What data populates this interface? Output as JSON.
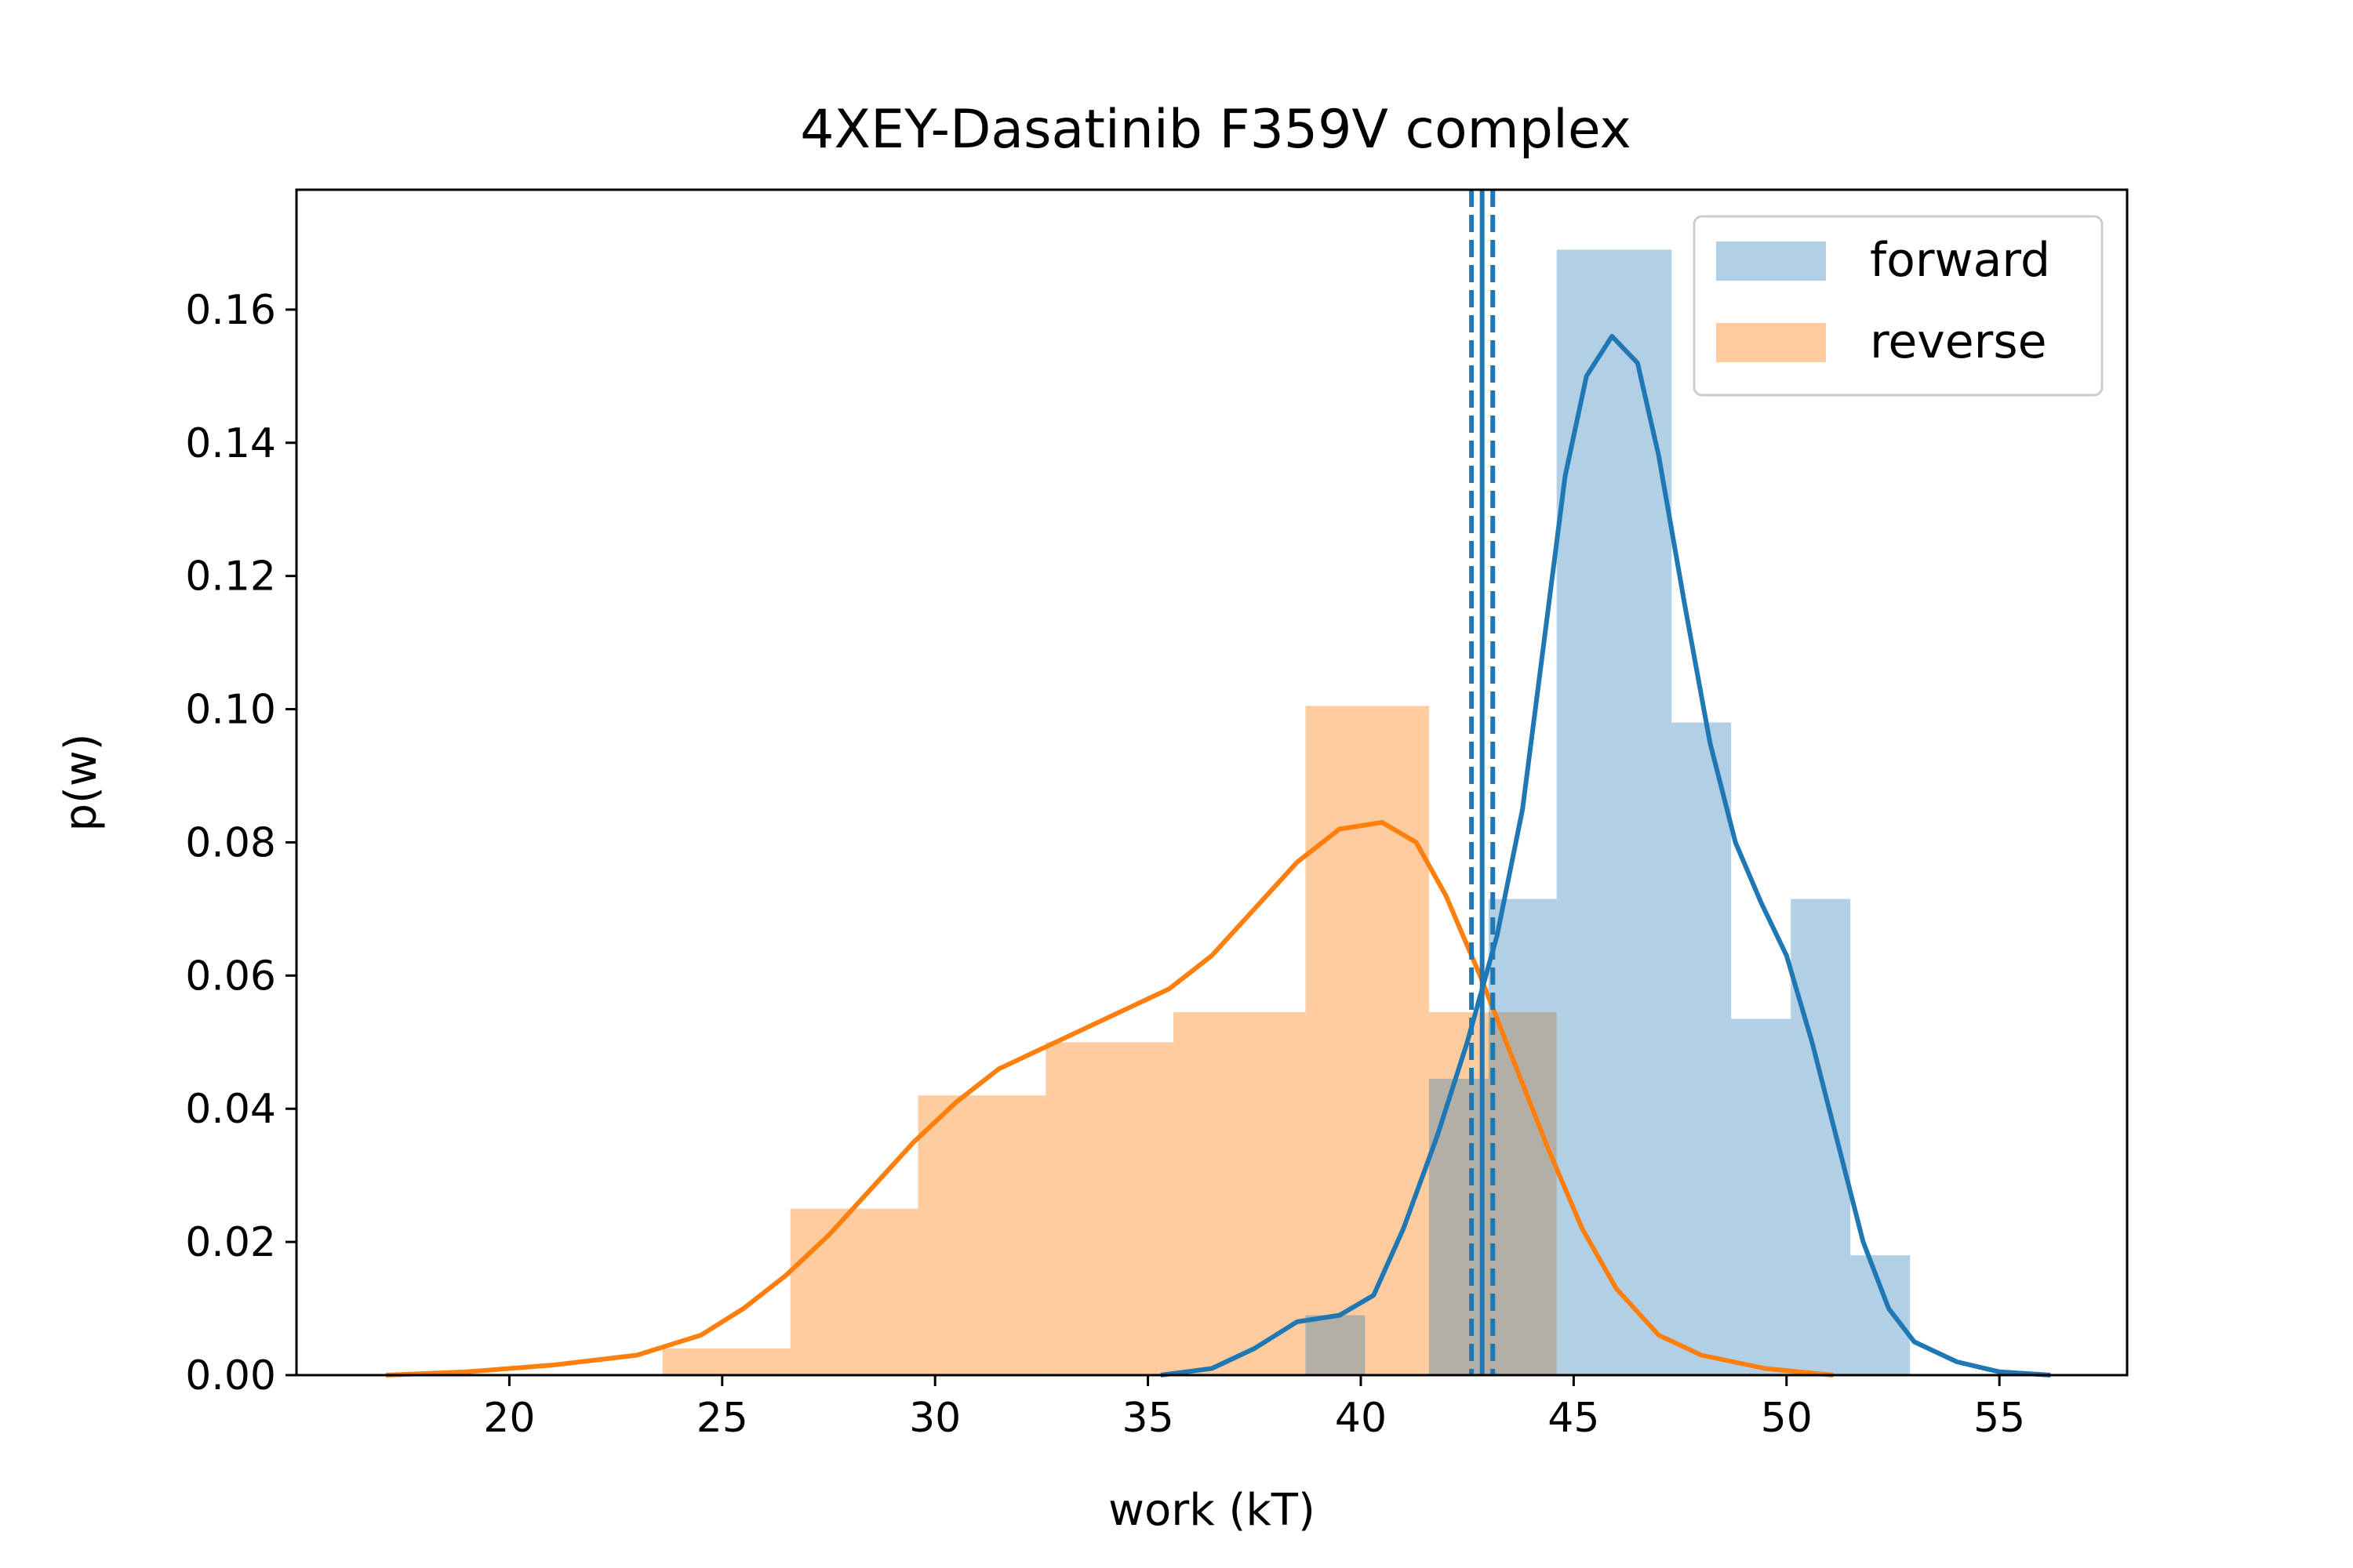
{
  "chart_data": {
    "type": "bar",
    "title": "4XEY-Dasatinib F359V complex",
    "xlabel": "work (kT)",
    "ylabel": "p(w)",
    "xlim": [
      15,
      58
    ],
    "ylim": [
      0,
      0.178
    ],
    "xticks": [
      "20",
      "25",
      "30",
      "35",
      "40",
      "45",
      "50",
      "55"
    ],
    "yticks": [
      "0.00",
      "0.02",
      "0.04",
      "0.06",
      "0.08",
      "0.10",
      "0.12",
      "0.14",
      "0.16"
    ],
    "legend": {
      "position": "top-right",
      "entries": [
        "forward",
        "reverse"
      ]
    },
    "series": [
      {
        "name": "forward",
        "color": "#1f77b4",
        "histogram": [
          {
            "x0": 38.7,
            "x1": 40.1,
            "p": 0.009
          },
          {
            "x0": 41.6,
            "x1": 43.0,
            "p": 0.0445
          },
          {
            "x0": 43.0,
            "x1": 44.6,
            "p": 0.0715
          },
          {
            "x0": 44.6,
            "x1": 47.3,
            "p": 0.169
          },
          {
            "x0": 47.3,
            "x1": 48.7,
            "p": 0.098
          },
          {
            "x0": 48.7,
            "x1": 50.1,
            "p": 0.0535
          },
          {
            "x0": 50.1,
            "x1": 51.5,
            "p": 0.0715
          },
          {
            "x0": 51.5,
            "x1": 52.9,
            "p": 0.018
          }
        ],
        "kde": [
          [
            35.3,
            0.0
          ],
          [
            36.5,
            0.001
          ],
          [
            37.5,
            0.004
          ],
          [
            38.5,
            0.008
          ],
          [
            39.5,
            0.009
          ],
          [
            40.3,
            0.012
          ],
          [
            41.0,
            0.022
          ],
          [
            41.8,
            0.036
          ],
          [
            42.5,
            0.05
          ],
          [
            43.2,
            0.066
          ],
          [
            43.8,
            0.085
          ],
          [
            44.3,
            0.11
          ],
          [
            44.8,
            0.135
          ],
          [
            45.3,
            0.15
          ],
          [
            45.9,
            0.156
          ],
          [
            46.5,
            0.152
          ],
          [
            47.0,
            0.138
          ],
          [
            47.6,
            0.116
          ],
          [
            48.2,
            0.095
          ],
          [
            48.8,
            0.08
          ],
          [
            49.4,
            0.071
          ],
          [
            50.0,
            0.063
          ],
          [
            50.6,
            0.05
          ],
          [
            51.2,
            0.035
          ],
          [
            51.8,
            0.02
          ],
          [
            52.4,
            0.01
          ],
          [
            53.0,
            0.005
          ],
          [
            54.0,
            0.002
          ],
          [
            55.0,
            0.0005
          ],
          [
            56.2,
            0.0
          ]
        ],
        "vlines": {
          "mean": 42.85,
          "ci": [
            42.6,
            43.1
          ]
        }
      },
      {
        "name": "reverse",
        "color": "#ff7f0e",
        "histogram": [
          {
            "x0": 23.6,
            "x1": 26.6,
            "p": 0.004
          },
          {
            "x0": 26.6,
            "x1": 29.6,
            "p": 0.025
          },
          {
            "x0": 29.6,
            "x1": 32.6,
            "p": 0.042
          },
          {
            "x0": 32.6,
            "x1": 35.6,
            "p": 0.05
          },
          {
            "x0": 35.6,
            "x1": 38.7,
            "p": 0.0545
          },
          {
            "x0": 38.7,
            "x1": 41.6,
            "p": 0.1005
          },
          {
            "x0": 41.6,
            "x1": 44.6,
            "p": 0.0545
          }
        ],
        "kde": [
          [
            17.1,
            0.0
          ],
          [
            19.0,
            0.0005
          ],
          [
            21.0,
            0.0015
          ],
          [
            23.0,
            0.003
          ],
          [
            24.5,
            0.006
          ],
          [
            25.5,
            0.01
          ],
          [
            26.5,
            0.015
          ],
          [
            27.5,
            0.021
          ],
          [
            28.5,
            0.028
          ],
          [
            29.5,
            0.035
          ],
          [
            30.5,
            0.041
          ],
          [
            31.5,
            0.046
          ],
          [
            32.5,
            0.049
          ],
          [
            33.5,
            0.052
          ],
          [
            34.5,
            0.055
          ],
          [
            35.5,
            0.058
          ],
          [
            36.5,
            0.063
          ],
          [
            37.5,
            0.07
          ],
          [
            38.5,
            0.077
          ],
          [
            39.5,
            0.082
          ],
          [
            40.5,
            0.083
          ],
          [
            41.3,
            0.08
          ],
          [
            42.0,
            0.072
          ],
          [
            42.8,
            0.06
          ],
          [
            43.6,
            0.047
          ],
          [
            44.4,
            0.034
          ],
          [
            45.2,
            0.022
          ],
          [
            46.0,
            0.013
          ],
          [
            47.0,
            0.006
          ],
          [
            48.0,
            0.003
          ],
          [
            49.5,
            0.001
          ],
          [
            51.1,
            0.0
          ]
        ]
      }
    ]
  }
}
